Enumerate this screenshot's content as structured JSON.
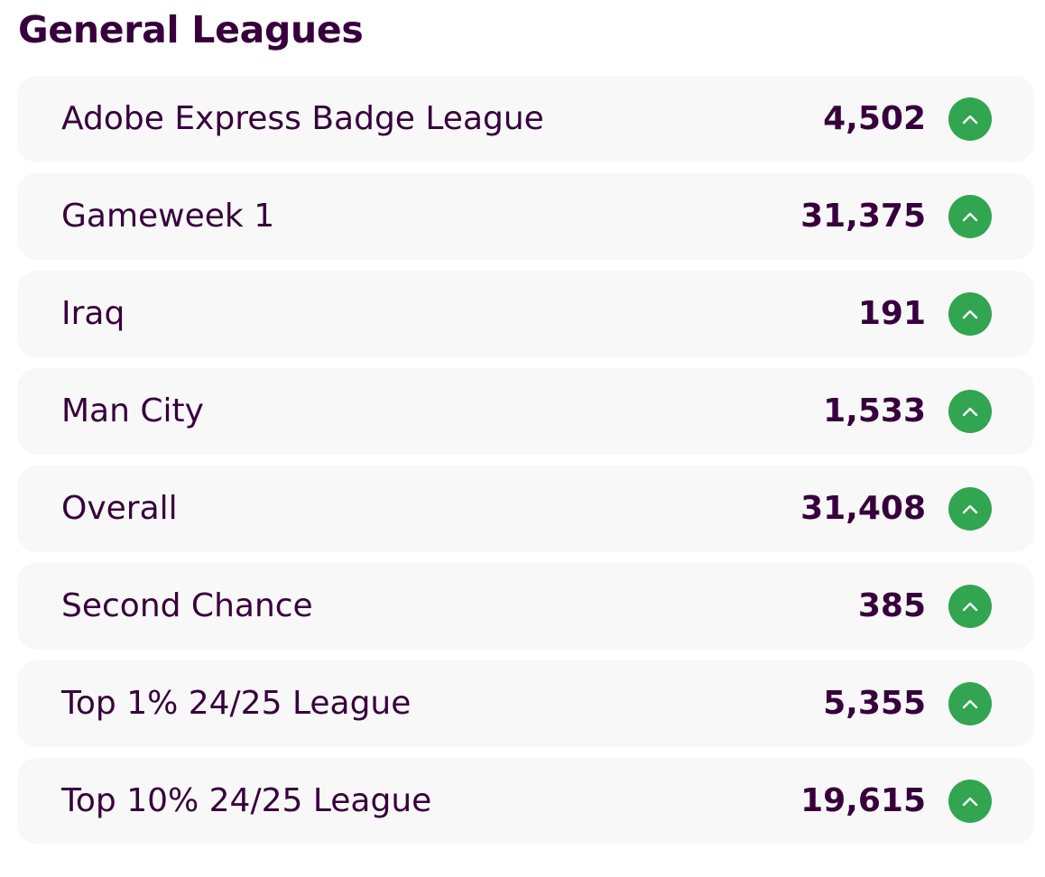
{
  "section": {
    "title": "General Leagues"
  },
  "colors": {
    "text": "#37003c",
    "row_background": "#f8f8f8",
    "rank_up": "#31a550"
  },
  "leagues": [
    {
      "name": "Adobe Express Badge League",
      "rank": "4,502",
      "movement_icon": "chevron-up-icon"
    },
    {
      "name": "Gameweek 1",
      "rank": "31,375",
      "movement_icon": "chevron-up-icon"
    },
    {
      "name": "Iraq",
      "rank": "191",
      "movement_icon": "chevron-up-icon"
    },
    {
      "name": "Man City",
      "rank": "1,533",
      "movement_icon": "chevron-up-icon"
    },
    {
      "name": "Overall",
      "rank": "31,408",
      "movement_icon": "chevron-up-icon"
    },
    {
      "name": "Second Chance",
      "rank": "385",
      "movement_icon": "chevron-up-icon"
    },
    {
      "name": "Top 1% 24/25 League",
      "rank": "5,355",
      "movement_icon": "chevron-up-icon"
    },
    {
      "name": "Top 10% 24/25 League",
      "rank": "19,615",
      "movement_icon": "chevron-up-icon"
    }
  ]
}
